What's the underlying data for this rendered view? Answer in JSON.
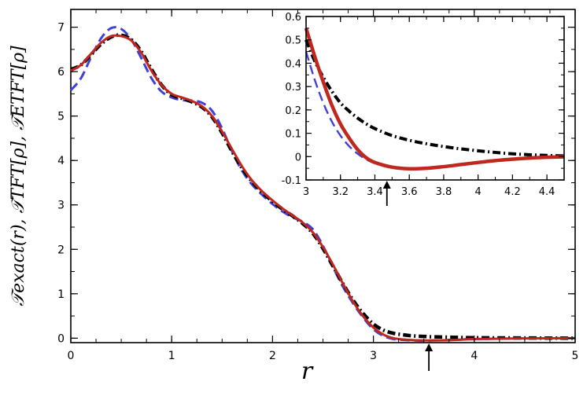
{
  "chart_data": [
    {
      "type": "line",
      "title": "",
      "xlabel": "r",
      "ylabel": "𝒯exact(r), 𝒯TFT[ρ], 𝒯ETFT[ρ]",
      "xlim": [
        0,
        5
      ],
      "ylim": [
        -0.1,
        7.4
      ],
      "xticks": [
        "0",
        "1",
        "2",
        "3",
        "4",
        "5"
      ],
      "yticks": [
        "0",
        "1",
        "2",
        "3",
        "4",
        "5",
        "6",
        "7"
      ],
      "grid": false,
      "legend": "none",
      "arrow_marker_x": 3.55,
      "series": [
        {
          "style": "dash-dot",
          "color": "#000000",
          "x": [
            0,
            0.1,
            0.2,
            0.3,
            0.4,
            0.5,
            0.6,
            0.7,
            0.8,
            0.9,
            1.0,
            1.1,
            1.2,
            1.3,
            1.4,
            1.5,
            1.6,
            1.7,
            1.8,
            1.9,
            2.0,
            2.1,
            2.2,
            2.3,
            2.4,
            2.5,
            2.6,
            2.7,
            2.8,
            2.9,
            3.0,
            3.1,
            3.2,
            3.3,
            3.4,
            3.5,
            3.6,
            3.8,
            4.0,
            4.5,
            5.0
          ],
          "values": [
            6.05,
            6.15,
            6.38,
            6.62,
            6.78,
            6.82,
            6.72,
            6.45,
            6.05,
            5.7,
            5.48,
            5.4,
            5.32,
            5.2,
            4.98,
            4.62,
            4.2,
            3.82,
            3.52,
            3.28,
            3.08,
            2.9,
            2.75,
            2.58,
            2.36,
            2.02,
            1.62,
            1.22,
            0.85,
            0.55,
            0.32,
            0.18,
            0.11,
            0.075,
            0.05,
            0.04,
            0.03,
            0.02,
            0.01,
            0.004,
            0.0
          ]
        },
        {
          "style": "solid",
          "color": "#c0281e",
          "x": [
            0,
            0.1,
            0.2,
            0.3,
            0.4,
            0.5,
            0.6,
            0.7,
            0.8,
            0.9,
            1.0,
            1.1,
            1.2,
            1.3,
            1.4,
            1.5,
            1.6,
            1.7,
            1.8,
            1.9,
            2.0,
            2.1,
            2.2,
            2.3,
            2.4,
            2.5,
            2.6,
            2.7,
            2.8,
            2.9,
            3.0,
            3.1,
            3.2,
            3.3,
            3.4,
            3.5,
            3.6,
            3.8,
            4.0,
            4.5,
            5.0
          ],
          "values": [
            6.02,
            6.15,
            6.4,
            6.65,
            6.8,
            6.8,
            6.7,
            6.42,
            6.02,
            5.7,
            5.5,
            5.42,
            5.34,
            5.22,
            5.0,
            4.65,
            4.25,
            3.86,
            3.54,
            3.3,
            3.1,
            2.92,
            2.76,
            2.6,
            2.38,
            2.05,
            1.65,
            1.22,
            0.82,
            0.49,
            0.24,
            0.08,
            0.0,
            -0.03,
            -0.045,
            -0.05,
            -0.05,
            -0.04,
            -0.02,
            -0.005,
            0.0
          ]
        },
        {
          "style": "dashed",
          "color": "#4040d8",
          "x": [
            0,
            0.1,
            0.2,
            0.3,
            0.4,
            0.5,
            0.6,
            0.7,
            0.8,
            0.9,
            1.0,
            1.1,
            1.2,
            1.3,
            1.4,
            1.5,
            1.6,
            1.7,
            1.8,
            1.9,
            2.0,
            2.1,
            2.2,
            2.3,
            2.4,
            2.5,
            2.6,
            2.7,
            2.8,
            2.9,
            3.0,
            3.1,
            3.2,
            3.3,
            3.4,
            3.5,
            3.6,
            3.8,
            4.0,
            4.5,
            5.0
          ],
          "values": [
            5.58,
            5.85,
            6.32,
            6.75,
            6.98,
            6.96,
            6.72,
            6.3,
            5.85,
            5.55,
            5.42,
            5.36,
            5.35,
            5.3,
            5.12,
            4.72,
            4.2,
            3.76,
            3.45,
            3.22,
            3.02,
            2.85,
            2.72,
            2.62,
            2.45,
            2.08,
            1.6,
            1.15,
            0.78,
            0.46,
            0.2,
            0.05,
            -0.02,
            -0.04,
            -0.05,
            -0.055,
            -0.05,
            -0.04,
            -0.02,
            -0.005,
            0.0
          ]
        }
      ]
    },
    {
      "type": "line",
      "title": "",
      "xlabel": "",
      "ylabel": "",
      "xlim": [
        3.0,
        4.5
      ],
      "ylim": [
        -0.1,
        0.6
      ],
      "xticks": [
        "3",
        "3.2",
        "3.4",
        "3.6",
        "3.8",
        "4",
        "4.2",
        "4.4"
      ],
      "yticks": [
        "-0.1",
        "0",
        "0.1",
        "0.2",
        "0.3",
        "0.4",
        "0.5",
        "0.6"
      ],
      "grid": false,
      "legend": "none",
      "arrow_marker_x": 3.47,
      "series": [
        {
          "style": "dash-dot",
          "color": "#000000",
          "x": [
            3.0,
            3.05,
            3.1,
            3.15,
            3.2,
            3.25,
            3.3,
            3.35,
            3.4,
            3.5,
            3.6,
            3.7,
            3.8,
            3.9,
            4.0,
            4.1,
            4.2,
            4.3,
            4.4,
            4.5
          ],
          "values": [
            0.5,
            0.41,
            0.34,
            0.28,
            0.23,
            0.195,
            0.165,
            0.14,
            0.12,
            0.09,
            0.07,
            0.055,
            0.043,
            0.033,
            0.025,
            0.018,
            0.012,
            0.008,
            0.005,
            0.003
          ]
        },
        {
          "style": "solid",
          "color": "#c0281e",
          "x": [
            3.0,
            3.05,
            3.1,
            3.15,
            3.2,
            3.25,
            3.3,
            3.35,
            3.4,
            3.5,
            3.6,
            3.7,
            3.8,
            3.9,
            4.0,
            4.1,
            4.2,
            4.3,
            4.4,
            4.5
          ],
          "values": [
            0.55,
            0.43,
            0.32,
            0.22,
            0.14,
            0.08,
            0.03,
            -0.005,
            -0.025,
            -0.045,
            -0.052,
            -0.05,
            -0.043,
            -0.034,
            -0.025,
            -0.017,
            -0.011,
            -0.006,
            -0.003,
            -0.001
          ]
        },
        {
          "style": "dashed",
          "color": "#4040d8",
          "x": [
            3.0,
            3.05,
            3.1,
            3.15,
            3.2,
            3.25,
            3.3,
            3.35,
            3.4,
            3.5,
            3.6,
            3.7,
            3.8,
            3.9,
            4.0,
            4.1,
            4.2,
            4.3,
            4.4,
            4.5
          ],
          "values": [
            0.45,
            0.33,
            0.23,
            0.15,
            0.09,
            0.045,
            0.012,
            -0.012,
            -0.028,
            -0.045,
            -0.052,
            -0.05,
            -0.043,
            -0.034,
            -0.025,
            -0.017,
            -0.011,
            -0.006,
            -0.003,
            -0.001
          ]
        }
      ]
    }
  ]
}
